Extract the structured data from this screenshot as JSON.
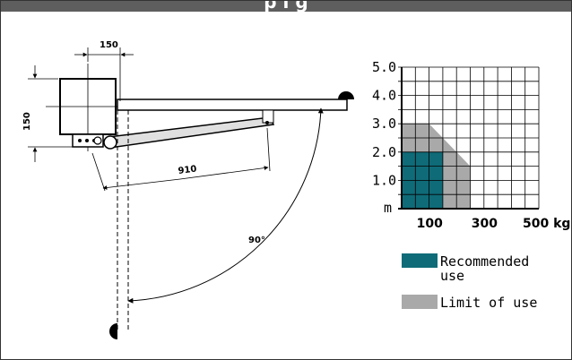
{
  "header": {
    "title": "p i   g"
  },
  "diagram": {
    "dim_offset": "150",
    "dim_height": "150",
    "dim_arm": "910",
    "angle": "90°"
  },
  "chart_data": {
    "type": "area",
    "y_ticks": [
      "5.0",
      "4.0",
      "3.0",
      "2.0",
      "1.0"
    ],
    "y_unit": "m",
    "x_ticks": [
      "100",
      "300",
      "500 kg"
    ],
    "xlim": [
      0,
      500
    ],
    "ylim": [
      0,
      5
    ],
    "grid": true,
    "series": [
      {
        "name": "Limit of use",
        "color": "#a9a9a9",
        "points": [
          [
            0,
            0
          ],
          [
            0,
            3
          ],
          [
            100,
            3
          ],
          [
            200,
            2
          ],
          [
            250,
            1.5
          ],
          [
            250,
            0
          ]
        ]
      },
      {
        "name": "Recommended use",
        "color": "#0f6b78",
        "points": [
          [
            0,
            0
          ],
          [
            0,
            2
          ],
          [
            150,
            2
          ],
          [
            150,
            0
          ]
        ]
      }
    ],
    "legend": [
      {
        "label_line1": "Recommended",
        "label_line2": "use",
        "color": "#0f6b78"
      },
      {
        "label_line1": "Limit of use",
        "label_line2": "",
        "color": "#a9a9a9"
      }
    ]
  }
}
